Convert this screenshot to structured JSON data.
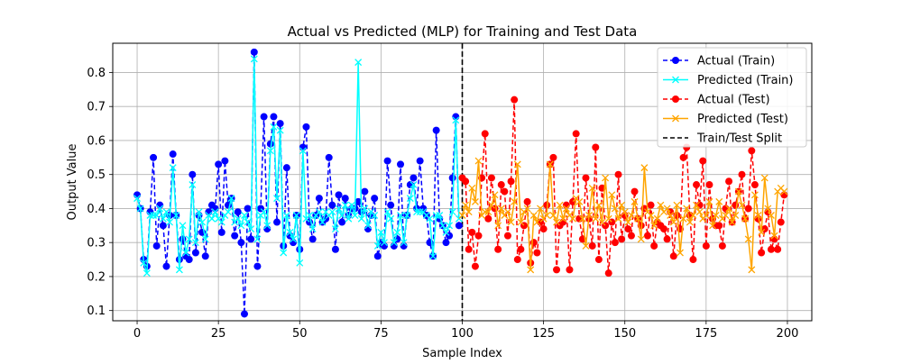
{
  "chart_data": {
    "type": "line",
    "title": "Actual vs Predicted (MLP) for Training and Test Data",
    "xlabel": "Sample Index",
    "ylabel": "Output Value",
    "xlim": [
      -7.5,
      207.5
    ],
    "ylim": [
      0.07,
      0.886
    ],
    "xticks": [
      0,
      25,
      50,
      75,
      100,
      125,
      150,
      175,
      200
    ],
    "yticks": [
      0.1,
      0.2,
      0.3,
      0.4,
      0.5,
      0.6,
      0.7,
      0.8
    ],
    "grid": true,
    "legend_position": "upper-right",
    "legend": [
      {
        "label": "Actual (Train)",
        "color": "#0000ff",
        "line": "dashed",
        "marker": "circle"
      },
      {
        "label": "Predicted (Train)",
        "color": "#00ffff",
        "line": "solid",
        "marker": "x"
      },
      {
        "label": "Actual (Test)",
        "color": "#ff0000",
        "line": "dashed",
        "marker": "circle"
      },
      {
        "label": "Predicted (Test)",
        "color": "#ffa500",
        "line": "solid",
        "marker": "x"
      },
      {
        "label": "Train/Test Split",
        "color": "#000000",
        "line": "dashed",
        "marker": "none"
      }
    ],
    "split_x": 100,
    "series": [
      {
        "name": "Actual (Train)",
        "color": "#0000ff",
        "x_start": 0,
        "values": [
          0.44,
          0.4,
          0.25,
          0.23,
          0.39,
          0.55,
          0.29,
          0.41,
          0.35,
          0.23,
          0.38,
          0.56,
          0.38,
          0.25,
          0.31,
          0.26,
          0.25,
          0.5,
          0.27,
          0.38,
          0.33,
          0.26,
          0.39,
          0.41,
          0.4,
          0.53,
          0.33,
          0.54,
          0.41,
          0.43,
          0.32,
          0.39,
          0.3,
          0.09,
          0.4,
          0.31,
          0.86,
          0.23,
          0.4,
          0.67,
          0.34,
          0.59,
          0.67,
          0.36,
          0.65,
          0.29,
          0.52,
          0.32,
          0.3,
          0.38,
          0.28,
          0.58,
          0.64,
          0.36,
          0.31,
          0.38,
          0.43,
          0.36,
          0.37,
          0.55,
          0.41,
          0.28,
          0.44,
          0.36,
          0.43,
          0.38,
          0.4,
          0.4,
          0.42,
          0.39,
          0.45,
          0.34,
          0.38,
          0.43,
          0.26,
          0.3,
          0.29,
          0.54,
          0.41,
          0.29,
          0.31,
          0.53,
          0.29,
          0.38,
          0.47,
          0.49,
          0.4,
          0.54,
          0.4,
          0.38,
          0.3,
          0.26,
          0.63,
          0.37,
          0.35,
          0.3,
          0.32,
          0.49,
          0.67,
          0.35
        ]
      },
      {
        "name": "Predicted (Train)",
        "color": "#00ffff",
        "x_start": 0,
        "values": [
          0.43,
          0.4,
          0.24,
          0.21,
          0.38,
          0.38,
          0.38,
          0.4,
          0.37,
          0.39,
          0.36,
          0.52,
          0.38,
          0.22,
          0.35,
          0.27,
          0.31,
          0.47,
          0.3,
          0.39,
          0.36,
          0.31,
          0.38,
          0.37,
          0.39,
          0.37,
          0.36,
          0.38,
          0.39,
          0.43,
          0.36,
          0.37,
          0.35,
          0.38,
          0.36,
          0.34,
          0.84,
          0.31,
          0.38,
          0.39,
          0.35,
          0.57,
          0.64,
          0.43,
          0.63,
          0.27,
          0.38,
          0.33,
          0.31,
          0.38,
          0.24,
          0.57,
          0.37,
          0.38,
          0.34,
          0.38,
          0.39,
          0.36,
          0.39,
          0.38,
          0.39,
          0.34,
          0.4,
          0.38,
          0.41,
          0.37,
          0.41,
          0.38,
          0.83,
          0.37,
          0.4,
          0.35,
          0.39,
          0.38,
          0.29,
          0.33,
          0.3,
          0.39,
          0.37,
          0.3,
          0.33,
          0.38,
          0.3,
          0.38,
          0.43,
          0.47,
          0.39,
          0.39,
          0.39,
          0.38,
          0.37,
          0.26,
          0.38,
          0.38,
          0.35,
          0.33,
          0.35,
          0.39,
          0.66,
          0.37
        ]
      },
      {
        "name": "Actual (Test)",
        "color": "#ff0000",
        "x_start": 100,
        "values": [
          0.49,
          0.48,
          0.28,
          0.33,
          0.23,
          0.32,
          0.49,
          0.62,
          0.37,
          0.49,
          0.4,
          0.28,
          0.47,
          0.45,
          0.32,
          0.48,
          0.72,
          0.25,
          0.28,
          0.35,
          0.42,
          0.24,
          0.3,
          0.27,
          0.36,
          0.34,
          0.41,
          0.53,
          0.55,
          0.22,
          0.35,
          0.36,
          0.41,
          0.22,
          0.42,
          0.62,
          0.37,
          0.31,
          0.49,
          0.37,
          0.29,
          0.58,
          0.25,
          0.46,
          0.35,
          0.21,
          0.36,
          0.3,
          0.5,
          0.31,
          0.38,
          0.34,
          0.32,
          0.45,
          0.37,
          0.35,
          0.4,
          0.32,
          0.41,
          0.29,
          0.36,
          0.35,
          0.34,
          0.31,
          0.39,
          0.26,
          0.38,
          0.34,
          0.55,
          0.58,
          0.38,
          0.25,
          0.47,
          0.41,
          0.54,
          0.29,
          0.47,
          0.37,
          0.35,
          0.35,
          0.29,
          0.4,
          0.48,
          0.36,
          0.41,
          0.45,
          0.5,
          0.37,
          0.4,
          0.57,
          0.47,
          0.37,
          0.27,
          0.34,
          0.39,
          0.28,
          0.31,
          0.28,
          0.36,
          0.44
        ]
      },
      {
        "name": "Predicted (Test)",
        "color": "#ffa500",
        "x_start": 100,
        "values": [
          0.38,
          0.41,
          0.39,
          0.46,
          0.42,
          0.54,
          0.38,
          0.39,
          0.39,
          0.41,
          0.44,
          0.35,
          0.4,
          0.38,
          0.39,
          0.36,
          0.42,
          0.53,
          0.36,
          0.39,
          0.4,
          0.22,
          0.38,
          0.36,
          0.4,
          0.37,
          0.38,
          0.53,
          0.38,
          0.36,
          0.41,
          0.37,
          0.4,
          0.38,
          0.37,
          0.43,
          0.42,
          0.37,
          0.29,
          0.38,
          0.46,
          0.37,
          0.41,
          0.36,
          0.49,
          0.37,
          0.44,
          0.4,
          0.37,
          0.41,
          0.39,
          0.36,
          0.38,
          0.42,
          0.37,
          0.31,
          0.52,
          0.39,
          0.38,
          0.35,
          0.37,
          0.41,
          0.39,
          0.4,
          0.38,
          0.36,
          0.41,
          0.27,
          0.37,
          0.4,
          0.36,
          0.38,
          0.41,
          0.39,
          0.37,
          0.38,
          0.42,
          0.35,
          0.38,
          0.42,
          0.37,
          0.38,
          0.4,
          0.36,
          0.38,
          0.45,
          0.41,
          0.37,
          0.31,
          0.22,
          0.44,
          0.38,
          0.33,
          0.49,
          0.4,
          0.38,
          0.32,
          0.45,
          0.46,
          0.45
        ]
      }
    ]
  }
}
